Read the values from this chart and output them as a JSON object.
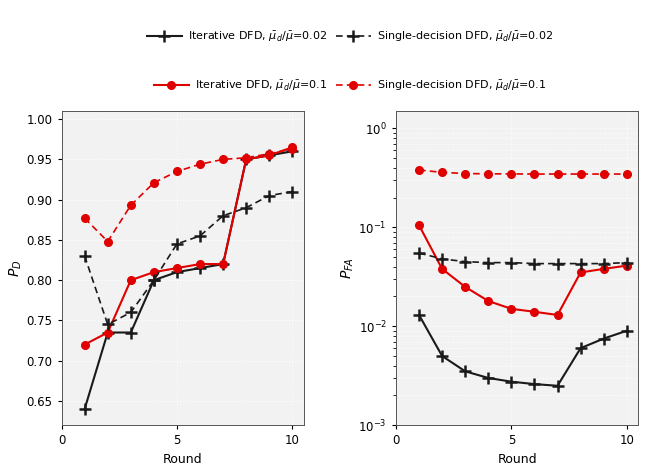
{
  "rounds": [
    1,
    2,
    3,
    4,
    5,
    6,
    7,
    8,
    9,
    10
  ],
  "pd_iter_002": [
    0.64,
    0.735,
    0.735,
    0.8,
    0.81,
    0.815,
    0.82,
    0.95,
    0.955,
    0.96
  ],
  "pd_iter_01": [
    0.72,
    0.735,
    0.8,
    0.81,
    0.815,
    0.82,
    0.82,
    0.95,
    0.955,
    0.965
  ],
  "pd_single_002": [
    0.83,
    0.745,
    0.76,
    0.8,
    0.845,
    0.855,
    0.88,
    0.89,
    0.905,
    0.91
  ],
  "pd_single_01": [
    0.877,
    0.848,
    0.893,
    0.921,
    0.935,
    0.944,
    0.95,
    0.952,
    0.957,
    0.963
  ],
  "pfa_iter_002": [
    0.013,
    0.005,
    0.0035,
    0.003,
    0.00275,
    0.0026,
    0.0025,
    0.006,
    0.0075,
    0.009
  ],
  "pfa_iter_01": [
    0.105,
    0.038,
    0.025,
    0.018,
    0.015,
    0.014,
    0.013,
    0.035,
    0.038,
    0.041
  ],
  "pfa_single_002": [
    0.055,
    0.048,
    0.045,
    0.044,
    0.044,
    0.043,
    0.043,
    0.043,
    0.043,
    0.044
  ],
  "pfa_single_01": [
    0.38,
    0.36,
    0.35,
    0.348,
    0.347,
    0.346,
    0.346,
    0.346,
    0.346,
    0.346
  ],
  "color_black": "#1a1a1a",
  "color_red": "#e00000",
  "legend_row1_labels": [
    "Iterative DFD, $\\bar{\\mu}_d/\\bar{\\mu}$=0.02",
    "Single-decision DFD, $\\bar{\\mu}_d/\\bar{\\mu}$=0.02"
  ],
  "legend_row2_labels": [
    "Iterative DFD, $\\bar{\\mu}_d/\\bar{\\mu}$=0.1",
    "Single-decision DFD, $\\bar{\\mu}_d/\\bar{\\mu}$=0.1"
  ],
  "xlabel": "Round",
  "ylabel_left": "$P_D$",
  "ylabel_right": "$P_{FA}$",
  "yticks_left": [
    0.65,
    0.7,
    0.75,
    0.8,
    0.85,
    0.9,
    0.95,
    1.0
  ],
  "xticks": [
    0,
    5,
    10
  ],
  "plot_bg": "#f2f2f2",
  "fig_bg": "#ffffff"
}
